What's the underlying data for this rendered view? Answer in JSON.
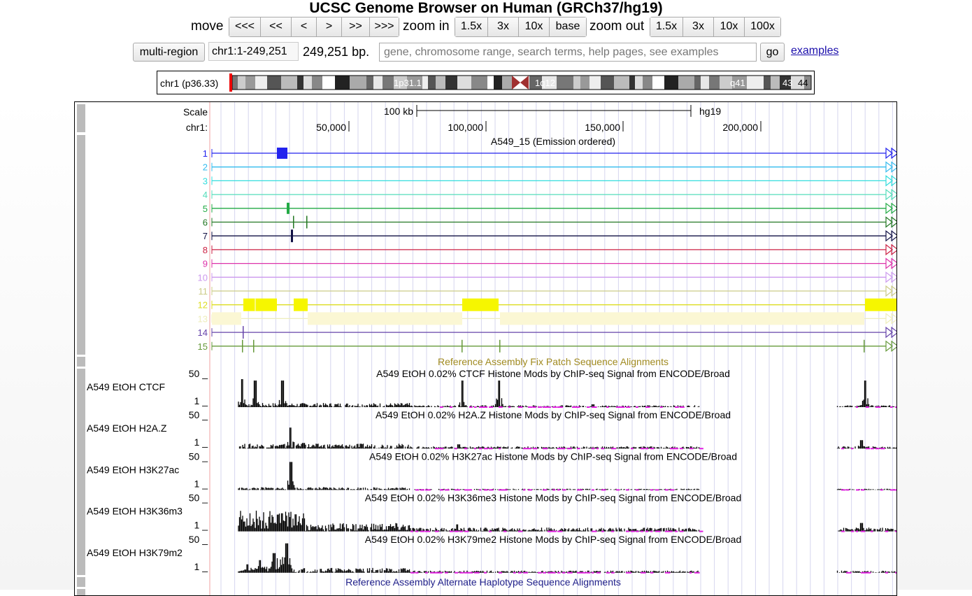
{
  "header": {
    "title": "UCSC Genome Browser on Human (GRCh37/hg19)"
  },
  "nav": {
    "move_label": "move",
    "move_buttons": [
      "<<<",
      "<<",
      "<",
      ">",
      ">>",
      ">>>"
    ],
    "zoom_in_label": "zoom in",
    "zoom_in_buttons": [
      "1.5x",
      "3x",
      "10x",
      "base"
    ],
    "zoom_out_label": "zoom out",
    "zoom_out_buttons": [
      "1.5x",
      "3x",
      "10x",
      "100x"
    ]
  },
  "position": {
    "multi_region_label": "multi-region",
    "current": "chr1:1-249,251",
    "size": "249,251 bp.",
    "search_placeholder": "gene, chromosome range, search terms, help pages, see examples",
    "go_label": "go",
    "examples_label": "examples"
  },
  "ideogram": {
    "chrom_label": "chr1 (p36.33)",
    "band_labels": [
      "1p31.1",
      "1q12",
      "q41",
      "43",
      "44"
    ]
  },
  "tracks": {
    "scale_label": "Scale",
    "chrom_label": "chr1:",
    "scale_bar_label": "100 kb",
    "assembly": "hg19",
    "ruler_ticks": [
      "50,000",
      "100,000",
      "150,000",
      "200,000"
    ],
    "chromhmm_title": "A549_15 (Emission ordered)",
    "states": [
      {
        "n": "1",
        "color": "#2222ee"
      },
      {
        "n": "2",
        "color": "#33bbee"
      },
      {
        "n": "3",
        "color": "#33dddd"
      },
      {
        "n": "4",
        "color": "#55ddbb"
      },
      {
        "n": "5",
        "color": "#22aa44"
      },
      {
        "n": "6",
        "color": "#227722"
      },
      {
        "n": "7",
        "color": "#111144"
      },
      {
        "n": "8",
        "color": "#cc2244"
      },
      {
        "n": "9",
        "color": "#dd33aa"
      },
      {
        "n": "10",
        "color": "#cc99ee"
      },
      {
        "n": "11",
        "color": "#cccc88"
      },
      {
        "n": "12",
        "color": "#dddd22"
      },
      {
        "n": "13",
        "color": "#eeeebb"
      },
      {
        "n": "14",
        "color": "#6644aa"
      },
      {
        "n": "15",
        "color": "#66993a"
      }
    ],
    "fix_patch_title": "Reference Assembly Fix Patch Sequence Alignments",
    "signal_tracks": [
      {
        "name": "A549 EtOH CTCF",
        "title": "A549 EtOH 0.02% CTCF Histone Mods by ChIP-seq Signal from ENCODE/Broad",
        "max": "50 _",
        "min": "1 _"
      },
      {
        "name": "A549 EtOH H2A.Z",
        "title": "A549 EtOH 0.02% H2A.Z Histone Mods by ChIP-seq Signal from ENCODE/Broad",
        "max": "50 _",
        "min": "1 _"
      },
      {
        "name": "A549 EtOH H3K27ac",
        "title": "A549 EtOH 0.02% H3K27ac Histone Mods by ChIP-seq Signal from ENCODE/Broad",
        "max": "50 _",
        "min": "1 _"
      },
      {
        "name": "A549 EtOH H3K36m3",
        "title": "A549 EtOH 0.02% H3K36me3 Histone Mods by ChIP-seq Signal from ENCODE/Broad",
        "max": "50 _",
        "min": "1 _"
      },
      {
        "name": "A549 EtOH H3K79m2",
        "title": "A549 EtOH 0.02% H3K79me2 Histone Mods by ChIP-seq Signal from ENCODE/Broad",
        "max": "50 _",
        "min": "1 _"
      }
    ],
    "alt_haplotype_title": "Reference Assembly Alternate Haplotype Sequence Alignments"
  }
}
